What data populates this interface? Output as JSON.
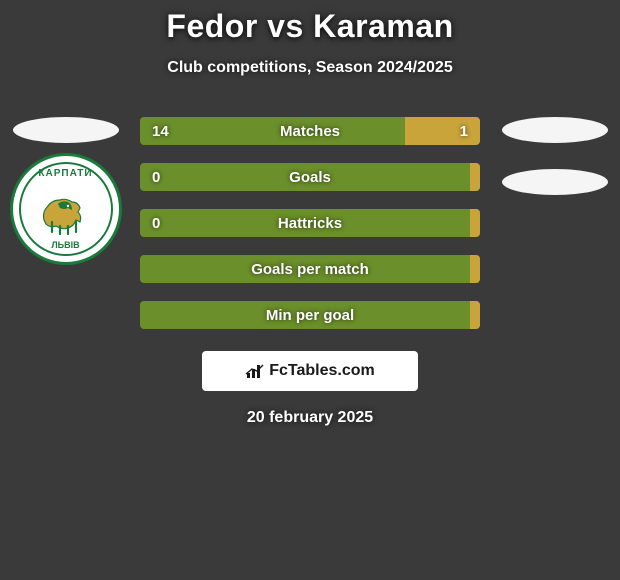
{
  "title": "Fedor vs Karaman",
  "subtitle": "Club competitions, Season 2024/2025",
  "colors": {
    "left_bar": "#6b8f2a",
    "right_bar": "#c9a43a",
    "badge_green": "#1a7a3c",
    "badge_gold": "#c9a43a",
    "background": "#3a3a3a"
  },
  "club_badge": {
    "top_text": "КАРПАТИ",
    "bottom_text": "ЛЬВІВ"
  },
  "stats": [
    {
      "label": "Matches",
      "left_value": "14",
      "right_value": "1",
      "left_width_pct": 78,
      "right_width_pct": 22
    },
    {
      "label": "Goals",
      "left_value": "0",
      "right_value": "",
      "left_width_pct": 100,
      "right_width_pct": 3
    },
    {
      "label": "Hattricks",
      "left_value": "0",
      "right_value": "",
      "left_width_pct": 100,
      "right_width_pct": 3
    },
    {
      "label": "Goals per match",
      "left_value": "",
      "right_value": "",
      "left_width_pct": 100,
      "right_width_pct": 3
    },
    {
      "label": "Min per goal",
      "left_value": "",
      "right_value": "",
      "left_width_pct": 100,
      "right_width_pct": 3
    }
  ],
  "footer": {
    "logo_text": "FcTables.com",
    "date": "20 february 2025"
  }
}
